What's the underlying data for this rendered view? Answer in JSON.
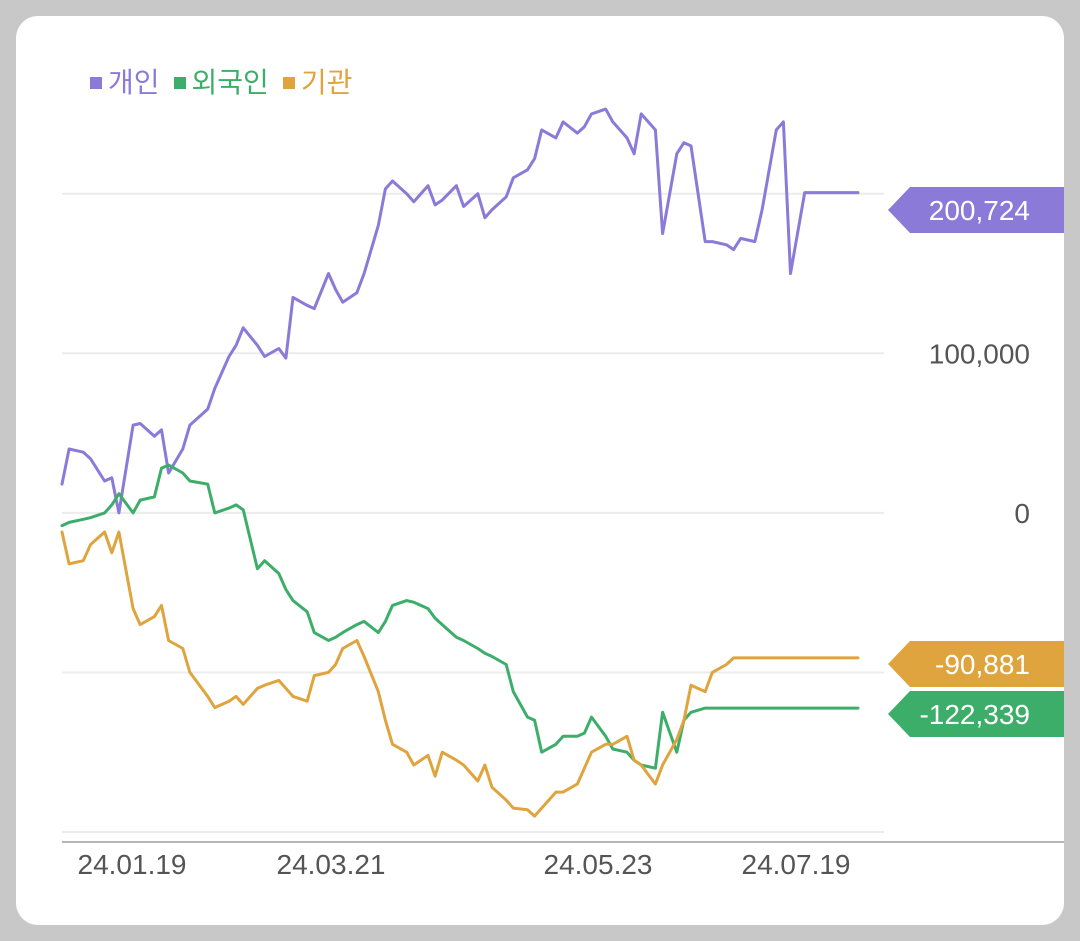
{
  "chart_data": {
    "type": "line",
    "title": "",
    "xlabel": "",
    "ylabel": "",
    "ylim": [
      -205000,
      265000
    ],
    "grid": true,
    "legend_position": "top-left",
    "y_ticks": [
      {
        "value": 100000,
        "label": "100,000"
      },
      {
        "value": 0,
        "label": "0"
      }
    ],
    "x_tick_labels": [
      "24.01.19",
      "24.03.21",
      "24.05.23",
      "24.07.19"
    ],
    "x_start": "2024-01-03",
    "x_end": "2024-08-14",
    "series": [
      {
        "name": "개인",
        "color": "#8b7ad8",
        "last_label": "200,724",
        "x": [
          "2024-01-03",
          "2024-01-05",
          "2024-01-09",
          "2024-01-11",
          "2024-01-15",
          "2024-01-17",
          "2024-01-19",
          "2024-01-23",
          "2024-01-25",
          "2024-01-29",
          "2024-01-31",
          "2024-02-02",
          "2024-02-06",
          "2024-02-08",
          "2024-02-13",
          "2024-02-15",
          "2024-02-19",
          "2024-02-21",
          "2024-02-23",
          "2024-02-27",
          "2024-02-29",
          "2024-03-04",
          "2024-03-06",
          "2024-03-08",
          "2024-03-12",
          "2024-03-14",
          "2024-03-18",
          "2024-03-20",
          "2024-03-22",
          "2024-03-26",
          "2024-03-28",
          "2024-04-01",
          "2024-04-03",
          "2024-04-05",
          "2024-04-09",
          "2024-04-11",
          "2024-04-15",
          "2024-04-17",
          "2024-04-19",
          "2024-04-23",
          "2024-04-25",
          "2024-04-29",
          "2024-05-01",
          "2024-05-03",
          "2024-05-07",
          "2024-05-09",
          "2024-05-13",
          "2024-05-15",
          "2024-05-17",
          "2024-05-21",
          "2024-05-23",
          "2024-05-27",
          "2024-05-29",
          "2024-05-31",
          "2024-06-04",
          "2024-06-06",
          "2024-06-10",
          "2024-06-12",
          "2024-06-14",
          "2024-06-18",
          "2024-06-20",
          "2024-06-24",
          "2024-06-26",
          "2024-06-28",
          "2024-07-02",
          "2024-07-04",
          "2024-07-08",
          "2024-07-10",
          "2024-07-12",
          "2024-07-16",
          "2024-07-18",
          "2024-07-22",
          "2024-07-24",
          "2024-07-26",
          "2024-07-30",
          "2024-08-01",
          "2024-08-05",
          "2024-08-07",
          "2024-08-09",
          "2024-08-13",
          "2024-08-14"
        ],
        "values": [
          18000,
          40000,
          38000,
          34000,
          20000,
          22000,
          0,
          55000,
          56000,
          48000,
          52000,
          25000,
          40000,
          55000,
          65000,
          78000,
          98000,
          105000,
          116000,
          105000,
          98000,
          103000,
          97000,
          135000,
          130000,
          128000,
          150000,
          140000,
          132000,
          138000,
          150000,
          180000,
          203000,
          208000,
          200000,
          195000,
          205000,
          193000,
          196000,
          205000,
          192000,
          200000,
          185000,
          190000,
          198000,
          210000,
          215000,
          222000,
          240000,
          235000,
          245000,
          238000,
          242000,
          250000,
          253000,
          245000,
          235000,
          225000,
          250000,
          240000,
          175000,
          225000,
          232000,
          230000,
          170000,
          170000,
          168000,
          165000,
          172000,
          170000,
          190000,
          240000,
          245000,
          150000,
          200724,
          200724,
          200724,
          200724,
          200724,
          200724,
          200724
        ]
      },
      {
        "name": "외국인",
        "color": "#3dae6a",
        "last_label": "-122,339",
        "x": [
          "2024-01-03",
          "2024-01-05",
          "2024-01-09",
          "2024-01-11",
          "2024-01-15",
          "2024-01-17",
          "2024-01-19",
          "2024-01-23",
          "2024-01-25",
          "2024-01-29",
          "2024-01-31",
          "2024-02-02",
          "2024-02-06",
          "2024-02-08",
          "2024-02-13",
          "2024-02-15",
          "2024-02-19",
          "2024-02-21",
          "2024-02-23",
          "2024-02-27",
          "2024-02-29",
          "2024-03-04",
          "2024-03-06",
          "2024-03-08",
          "2024-03-12",
          "2024-03-14",
          "2024-03-18",
          "2024-03-20",
          "2024-03-22",
          "2024-03-26",
          "2024-03-28",
          "2024-04-01",
          "2024-04-03",
          "2024-04-05",
          "2024-04-09",
          "2024-04-11",
          "2024-04-15",
          "2024-04-17",
          "2024-04-19",
          "2024-04-23",
          "2024-04-25",
          "2024-04-29",
          "2024-05-01",
          "2024-05-03",
          "2024-05-07",
          "2024-05-09",
          "2024-05-13",
          "2024-05-15",
          "2024-05-17",
          "2024-05-21",
          "2024-05-23",
          "2024-05-27",
          "2024-05-29",
          "2024-05-31",
          "2024-06-04",
          "2024-06-06",
          "2024-06-10",
          "2024-06-12",
          "2024-06-14",
          "2024-06-18",
          "2024-06-20",
          "2024-06-24",
          "2024-06-26",
          "2024-06-28",
          "2024-07-02",
          "2024-07-04",
          "2024-07-08",
          "2024-07-10",
          "2024-07-12",
          "2024-07-16",
          "2024-07-18",
          "2024-07-22",
          "2024-07-24",
          "2024-07-26",
          "2024-07-30",
          "2024-08-01",
          "2024-08-05",
          "2024-08-07",
          "2024-08-09",
          "2024-08-13",
          "2024-08-14"
        ],
        "values": [
          -8000,
          -6000,
          -4000,
          -3000,
          0,
          5000,
          12000,
          0,
          8000,
          10000,
          28000,
          30000,
          25000,
          20000,
          18000,
          0,
          3000,
          5000,
          2000,
          -35000,
          -30000,
          -38000,
          -48000,
          -55000,
          -62000,
          -75000,
          -80000,
          -78000,
          -75000,
          -70000,
          -68000,
          -75000,
          -68000,
          -58000,
          -55000,
          -56000,
          -60000,
          -66000,
          -70000,
          -78000,
          -80000,
          -85000,
          -88000,
          -90000,
          -95000,
          -112000,
          -128000,
          -130000,
          -150000,
          -145000,
          -140000,
          -140000,
          -138000,
          -128000,
          -140000,
          -148000,
          -150000,
          -155000,
          -158000,
          -160000,
          -125000,
          -150000,
          -130000,
          -125000,
          -122339,
          -122339,
          -122339,
          -122339,
          -122339,
          -122339,
          -122339,
          -122339,
          -122339,
          -122339,
          -122339,
          -122339,
          -122339,
          -122339,
          -122339,
          -122339,
          -122339
        ]
      },
      {
        "name": "기관",
        "color": "#e0a43e",
        "last_label": "-90,881",
        "x": [
          "2024-01-03",
          "2024-01-05",
          "2024-01-09",
          "2024-01-11",
          "2024-01-15",
          "2024-01-17",
          "2024-01-19",
          "2024-01-23",
          "2024-01-25",
          "2024-01-29",
          "2024-01-31",
          "2024-02-02",
          "2024-02-06",
          "2024-02-08",
          "2024-02-13",
          "2024-02-15",
          "2024-02-19",
          "2024-02-21",
          "2024-02-23",
          "2024-02-27",
          "2024-02-29",
          "2024-03-04",
          "2024-03-06",
          "2024-03-08",
          "2024-03-12",
          "2024-03-14",
          "2024-03-18",
          "2024-03-20",
          "2024-03-22",
          "2024-03-26",
          "2024-03-28",
          "2024-04-01",
          "2024-04-03",
          "2024-04-05",
          "2024-04-09",
          "2024-04-11",
          "2024-04-15",
          "2024-04-17",
          "2024-04-19",
          "2024-04-23",
          "2024-04-25",
          "2024-04-29",
          "2024-05-01",
          "2024-05-03",
          "2024-05-07",
          "2024-05-09",
          "2024-05-13",
          "2024-05-15",
          "2024-05-17",
          "2024-05-21",
          "2024-05-23",
          "2024-05-27",
          "2024-05-29",
          "2024-05-31",
          "2024-06-04",
          "2024-06-06",
          "2024-06-10",
          "2024-06-12",
          "2024-06-14",
          "2024-06-18",
          "2024-06-20",
          "2024-06-24",
          "2024-06-26",
          "2024-06-28",
          "2024-07-02",
          "2024-07-04",
          "2024-07-08",
          "2024-07-10",
          "2024-07-12",
          "2024-07-16",
          "2024-07-18",
          "2024-07-22",
          "2024-07-24",
          "2024-07-26",
          "2024-07-30",
          "2024-08-01",
          "2024-08-05",
          "2024-08-07",
          "2024-08-09",
          "2024-08-13",
          "2024-08-14"
        ],
        "values": [
          -12000,
          -32000,
          -30000,
          -20000,
          -12000,
          -25000,
          -12000,
          -60000,
          -70000,
          -65000,
          -58000,
          -80000,
          -85000,
          -100000,
          -115000,
          -122000,
          -118000,
          -115000,
          -120000,
          -110000,
          -108000,
          -105000,
          -110000,
          -115000,
          -118000,
          -102000,
          -100000,
          -95000,
          -85000,
          -80000,
          -90000,
          -112000,
          -130000,
          -145000,
          -150000,
          -158000,
          -152000,
          -165000,
          -150000,
          -155000,
          -158000,
          -168000,
          -158000,
          -172000,
          -180000,
          -185000,
          -186000,
          -190000,
          -185000,
          -175000,
          -175000,
          -170000,
          -160000,
          -150000,
          -145000,
          -145000,
          -140000,
          -155000,
          -158000,
          -170000,
          -158000,
          -142000,
          -130000,
          -108000,
          -112000,
          -100000,
          -95000,
          -90881,
          -90881,
          -90881,
          -90881,
          -90881,
          -90881,
          -90881,
          -90881,
          -90881,
          -90881,
          -90881,
          -90881,
          -90881,
          -90881
        ]
      }
    ]
  }
}
